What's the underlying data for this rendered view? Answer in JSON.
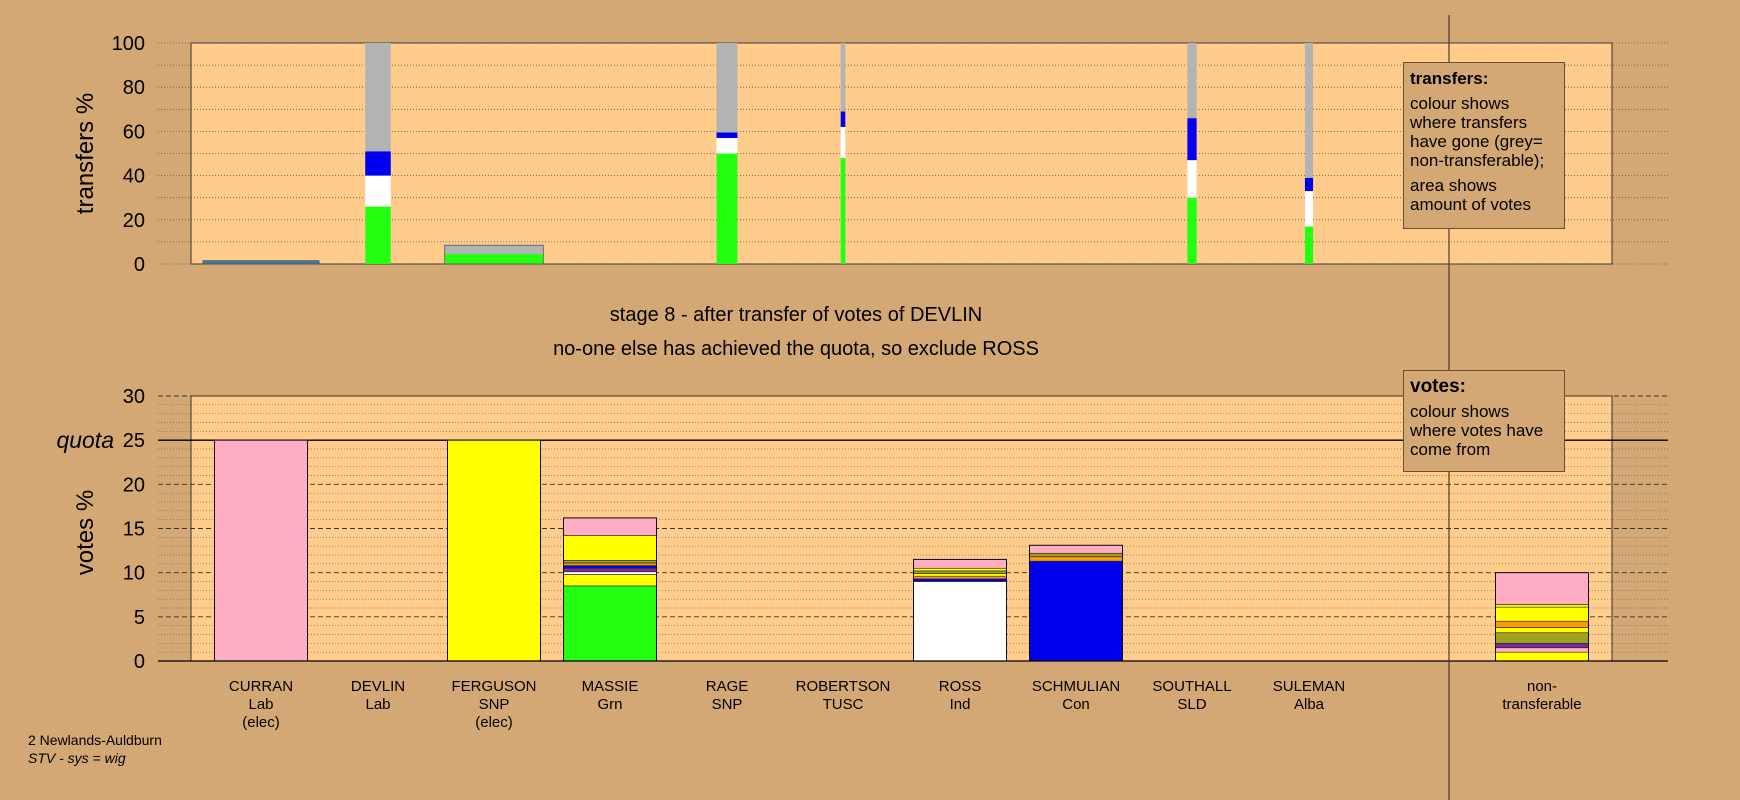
{
  "chart_data": [
    {
      "type": "bar",
      "name": "transfers",
      "ylabel": "transfers %",
      "ylim": [
        0,
        100
      ],
      "yticks": [
        0,
        20,
        40,
        60,
        80,
        100
      ],
      "categories": [
        "CURRAN",
        "DEVLIN",
        "FERGUSON",
        "MASSIE",
        "RAGE",
        "ROBERTSON",
        "ROSS",
        "SCHMULIAN",
        "SOUTHALL",
        "SULEMAN"
      ],
      "bars": [
        {
          "candidate": "CURRAN",
          "width": 1.0,
          "segments": [
            {
              "value": 1.5,
              "color": "#3a7ab0"
            }
          ]
        },
        {
          "candidate": "DEVLIN",
          "width": 0.22,
          "segments": [
            {
              "value": 26,
              "color": "#22ff11"
            },
            {
              "value": 14,
              "color": "#ffffff"
            },
            {
              "value": 11,
              "color": "#0000ee"
            },
            {
              "value": 49,
              "color": "#b3b3b3"
            }
          ]
        },
        {
          "candidate": "FERGUSON",
          "width": 0.85,
          "segments": [
            {
              "value": 4.5,
              "color": "#22ff11"
            },
            {
              "value": 4,
              "color": "#b3b3b3"
            }
          ]
        },
        {
          "candidate": "RAGE",
          "width": 0.18,
          "segments": [
            {
              "value": 50,
              "color": "#22ff11"
            },
            {
              "value": 7,
              "color": "#ffffff"
            },
            {
              "value": 2.5,
              "color": "#0000ee"
            },
            {
              "value": 40.5,
              "color": "#b3b3b3"
            }
          ]
        },
        {
          "candidate": "ROBERTSON",
          "width": 0.04,
          "segments": [
            {
              "value": 48,
              "color": "#22ff11"
            },
            {
              "value": 14,
              "color": "#ffffff"
            },
            {
              "value": 7,
              "color": "#0000ee"
            },
            {
              "value": 31,
              "color": "#b3b3b3"
            }
          ]
        },
        {
          "candidate": "SOUTHALL",
          "width": 0.08,
          "segments": [
            {
              "value": 30,
              "color": "#22ff11"
            },
            {
              "value": 17,
              "color": "#ffffff"
            },
            {
              "value": 19,
              "color": "#0000ee"
            },
            {
              "value": 34,
              "color": "#b3b3b3"
            }
          ]
        },
        {
          "candidate": "SULEMAN",
          "width": 0.07,
          "segments": [
            {
              "value": 17,
              "color": "#22ff11"
            },
            {
              "value": 16,
              "color": "#ffffff"
            },
            {
              "value": 6,
              "color": "#0000ee"
            },
            {
              "value": 61,
              "color": "#b3b3b3"
            }
          ]
        }
      ]
    },
    {
      "type": "bar",
      "name": "votes",
      "ylabel": "votes %",
      "ylim": [
        0,
        30
      ],
      "yticks": [
        0,
        5,
        10,
        15,
        20,
        25,
        30
      ],
      "quota": 25,
      "quota_label": "quota",
      "categories": [
        "CURRAN",
        "DEVLIN",
        "FERGUSON",
        "MASSIE",
        "RAGE",
        "ROBERTSON",
        "ROSS",
        "SCHMULIAN",
        "SOUTHALL",
        "SULEMAN",
        "non-transferable"
      ],
      "bars": [
        {
          "candidate": "CURRAN",
          "segments": [
            {
              "value": 25,
              "color": "#ffadc4"
            }
          ]
        },
        {
          "candidate": "DEVLIN",
          "segments": []
        },
        {
          "candidate": "FERGUSON",
          "segments": [
            {
              "value": 25,
              "color": "#ffff00"
            }
          ]
        },
        {
          "candidate": "MASSIE",
          "segments": [
            {
              "value": 8.5,
              "color": "#22ff11"
            },
            {
              "value": 1.3,
              "color": "#ffff00"
            },
            {
              "value": 0.3,
              "color": "#ffffff"
            },
            {
              "value": 0.4,
              "color": "#7030a0"
            },
            {
              "value": 0.3,
              "color": "#0000ee"
            },
            {
              "value": 0.3,
              "color": "#ff9900"
            },
            {
              "value": 0.3,
              "color": "#a0a020"
            },
            {
              "value": 2.8,
              "color": "#ffff00"
            },
            {
              "value": 2.0,
              "color": "#ffadc4"
            }
          ]
        },
        {
          "candidate": "RAGE",
          "segments": []
        },
        {
          "candidate": "ROBERTSON",
          "segments": []
        },
        {
          "candidate": "ROSS",
          "segments": [
            {
              "value": 9.0,
              "color": "#ffffff"
            },
            {
              "value": 0.3,
              "color": "#0000ee"
            },
            {
              "value": 0.3,
              "color": "#ff9900"
            },
            {
              "value": 0.3,
              "color": "#ffff00"
            },
            {
              "value": 0.3,
              "color": "#a0a020"
            },
            {
              "value": 0.3,
              "color": "#ffff00"
            },
            {
              "value": 1.0,
              "color": "#ffadc4"
            }
          ]
        },
        {
          "candidate": "SCHMULIAN",
          "segments": [
            {
              "value": 11.3,
              "color": "#0000ee"
            },
            {
              "value": 0.5,
              "color": "#ff9900"
            },
            {
              "value": 0.4,
              "color": "#a0a020"
            },
            {
              "value": 0.9,
              "color": "#ffadc4"
            }
          ]
        },
        {
          "candidate": "SOUTHALL",
          "segments": []
        },
        {
          "candidate": "SULEMAN",
          "segments": []
        },
        {
          "candidate": "non-transferable",
          "segments": [
            {
              "value": 1.0,
              "color": "#ffff00"
            },
            {
              "value": 0.5,
              "color": "#ffadc4"
            },
            {
              "value": 0.5,
              "color": "#7030a0"
            },
            {
              "value": 1.2,
              "color": "#a0a020"
            },
            {
              "value": 0.6,
              "color": "#ffff00"
            },
            {
              "value": 0.7,
              "color": "#ff9900"
            },
            {
              "value": 1.6,
              "color": "#ffff00"
            },
            {
              "value": 0.3,
              "color": "#ffff00"
            },
            {
              "value": 3.6,
              "color": "#ffadc4"
            }
          ]
        }
      ]
    }
  ],
  "stage": {
    "line1": "stage 8 - after transfer of votes of DEVLIN",
    "line2": "no-one else has achieved the quota, so exclude ROSS"
  },
  "legend_transfers": {
    "title": "transfers:",
    "text1": "colour shows where transfers have gone (grey= non-transferable);",
    "text2": "area shows amount of votes"
  },
  "legend_votes": {
    "title": "votes:",
    "text1": "colour shows where votes have come from"
  },
  "candidates": [
    {
      "name": "CURRAN",
      "party": "Lab",
      "status": "(elec)"
    },
    {
      "name": "DEVLIN",
      "party": "Lab",
      "status": ""
    },
    {
      "name": "FERGUSON",
      "party": "SNP",
      "status": "(elec)"
    },
    {
      "name": "MASSIE",
      "party": "Grn",
      "status": ""
    },
    {
      "name": "RAGE",
      "party": "SNP",
      "status": ""
    },
    {
      "name": "ROBERTSON",
      "party": "TUSC",
      "status": ""
    },
    {
      "name": "ROSS",
      "party": "Ind",
      "status": ""
    },
    {
      "name": "SCHMULIAN",
      "party": "Con",
      "status": ""
    },
    {
      "name": "SOUTHALL",
      "party": "SLD",
      "status": ""
    },
    {
      "name": "SULEMAN",
      "party": "Alba",
      "status": ""
    }
  ],
  "nontransferable_label": {
    "line1": "non-",
    "line2": "transferable"
  },
  "footer": {
    "ward": "2 Newlands-Auldburn",
    "system": "STV - sys = wig"
  },
  "colors": {
    "background": "#d4a874",
    "plot_bg": "#ffcc8c"
  }
}
